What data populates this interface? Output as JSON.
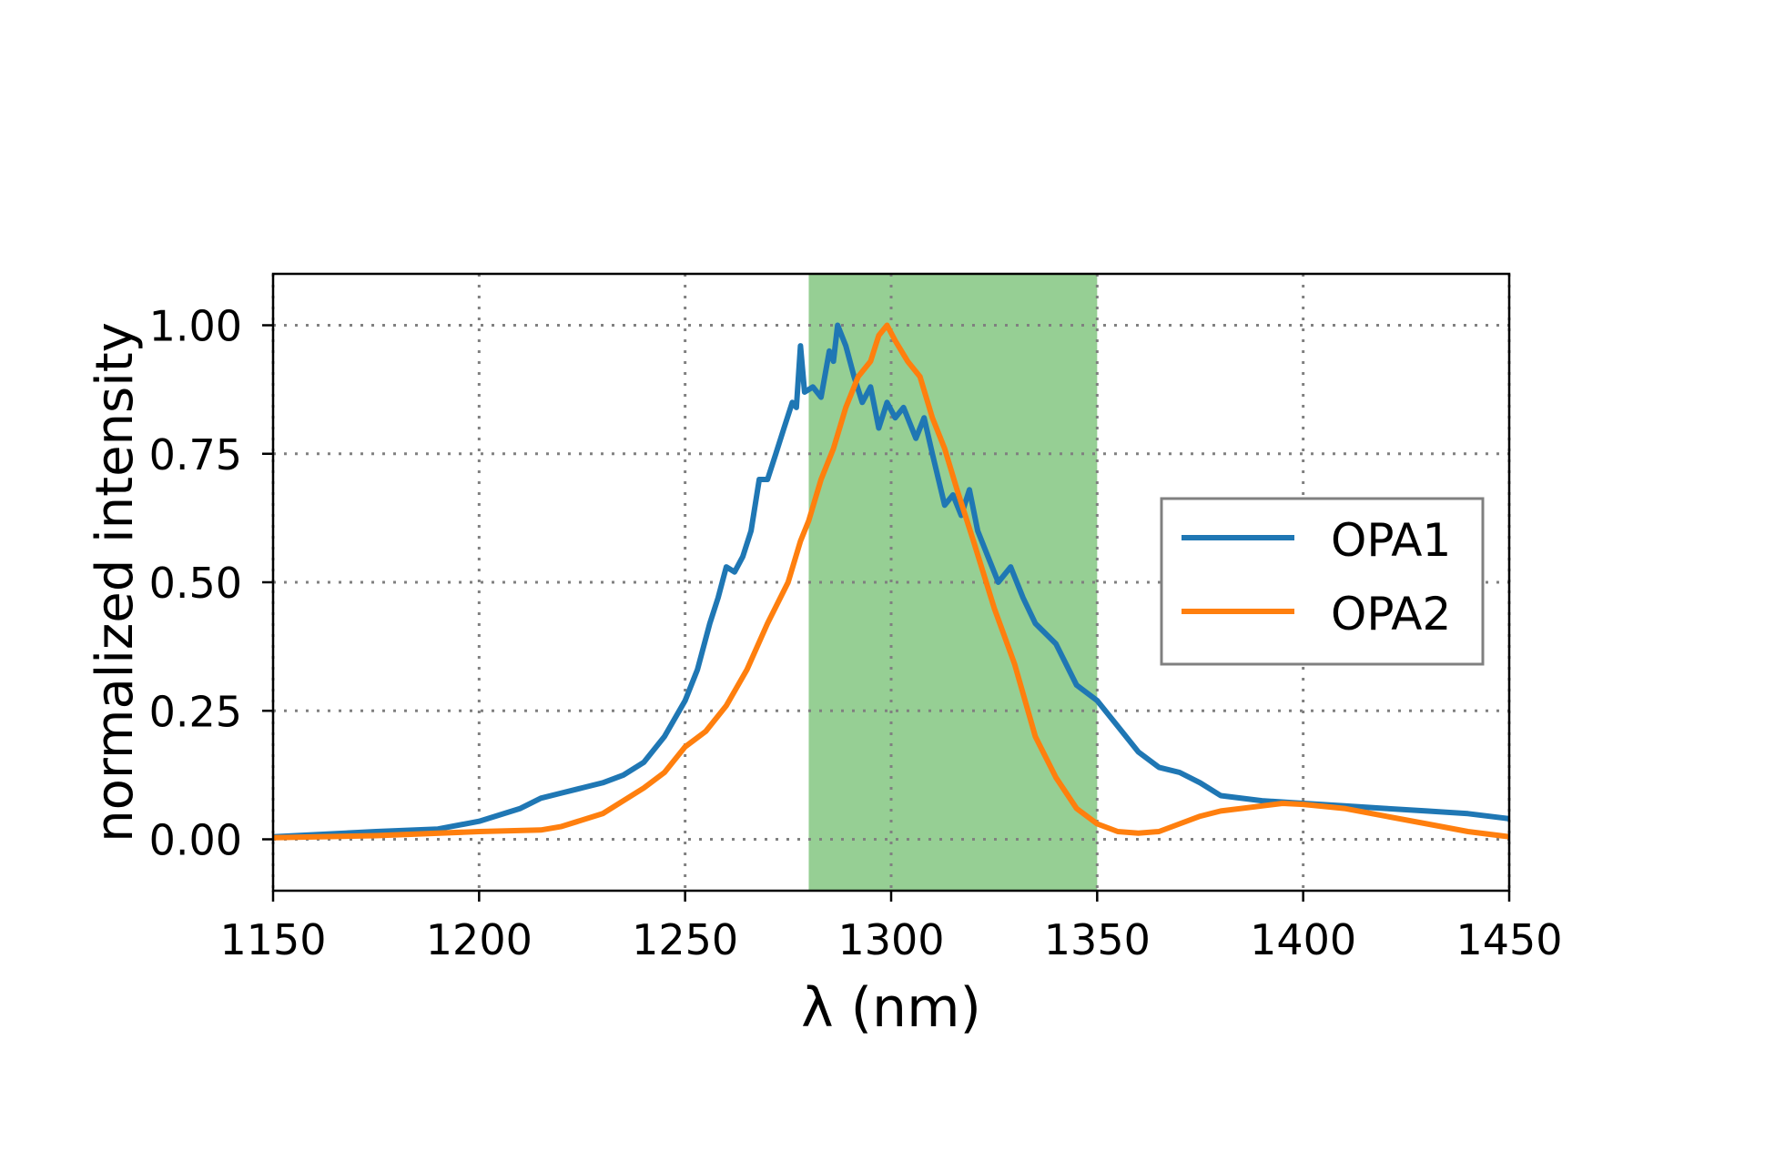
{
  "chart_data": {
    "type": "line",
    "title": "",
    "xlabel": "λ (nm)",
    "ylabel": "normalized intensity",
    "xlim": [
      1150,
      1450
    ],
    "ylim": [
      -0.1,
      1.1
    ],
    "xticks": [
      1150,
      1200,
      1250,
      1300,
      1350,
      1400,
      1450
    ],
    "xtick_labels": [
      "1150",
      "1200",
      "1250",
      "1300",
      "1350",
      "1400",
      "1450"
    ],
    "yticks": [
      0,
      0.25,
      0.5,
      0.75,
      1.0
    ],
    "ytick_labels": [
      "0.00",
      "0.25",
      "0.50",
      "0.75",
      "1.00"
    ],
    "grid": true,
    "grid_style": "dotted",
    "legend_position": "center-right",
    "highlight_band": {
      "x_start": 1280,
      "x_end": 1350,
      "color": "#96cf94"
    },
    "series": [
      {
        "name": "OPA1",
        "color": "#1f77b4",
        "x": [
          1150,
          1175,
          1190,
          1200,
          1210,
          1215,
          1220,
          1225,
          1230,
          1235,
          1240,
          1245,
          1250,
          1253,
          1256,
          1258,
          1260,
          1262,
          1264,
          1266,
          1268,
          1270,
          1272,
          1274,
          1276,
          1277,
          1278,
          1279,
          1281,
          1283,
          1285,
          1286,
          1287,
          1289,
          1291,
          1293,
          1295,
          1297,
          1299,
          1301,
          1303,
          1306,
          1308,
          1310,
          1313,
          1315,
          1317,
          1319,
          1321,
          1323,
          1326,
          1329,
          1332,
          1335,
          1340,
          1345,
          1350,
          1355,
          1360,
          1365,
          1370,
          1375,
          1380,
          1390,
          1400,
          1410,
          1420,
          1430,
          1440,
          1450
        ],
        "y": [
          0.005,
          0.015,
          0.02,
          0.035,
          0.06,
          0.08,
          0.09,
          0.1,
          0.11,
          0.125,
          0.15,
          0.2,
          0.27,
          0.33,
          0.42,
          0.47,
          0.53,
          0.52,
          0.55,
          0.6,
          0.7,
          0.7,
          0.75,
          0.8,
          0.85,
          0.84,
          0.96,
          0.87,
          0.88,
          0.86,
          0.95,
          0.93,
          1.0,
          0.96,
          0.9,
          0.85,
          0.88,
          0.8,
          0.85,
          0.82,
          0.84,
          0.78,
          0.82,
          0.75,
          0.65,
          0.67,
          0.63,
          0.68,
          0.6,
          0.56,
          0.5,
          0.53,
          0.47,
          0.42,
          0.38,
          0.3,
          0.27,
          0.22,
          0.17,
          0.14,
          0.13,
          0.11,
          0.085,
          0.075,
          0.07,
          0.065,
          0.06,
          0.055,
          0.05,
          0.04
        ]
      },
      {
        "name": "OPA2",
        "color": "#ff7f0e",
        "x": [
          1150,
          1175,
          1200,
          1215,
          1220,
          1230,
          1240,
          1245,
          1250,
          1255,
          1260,
          1265,
          1270,
          1275,
          1278,
          1280,
          1283,
          1286,
          1289,
          1292,
          1295,
          1297,
          1299,
          1301,
          1304,
          1307,
          1310,
          1313,
          1316,
          1320,
          1325,
          1330,
          1335,
          1340,
          1345,
          1350,
          1355,
          1360,
          1365,
          1370,
          1375,
          1380,
          1390,
          1395,
          1400,
          1410,
          1420,
          1430,
          1440,
          1450
        ],
        "y": [
          0.003,
          0.007,
          0.015,
          0.018,
          0.025,
          0.05,
          0.1,
          0.13,
          0.18,
          0.21,
          0.26,
          0.33,
          0.42,
          0.5,
          0.58,
          0.62,
          0.7,
          0.76,
          0.84,
          0.9,
          0.93,
          0.98,
          1.0,
          0.97,
          0.93,
          0.9,
          0.82,
          0.76,
          0.68,
          0.58,
          0.45,
          0.34,
          0.2,
          0.12,
          0.06,
          0.03,
          0.015,
          0.012,
          0.015,
          0.03,
          0.045,
          0.055,
          0.065,
          0.07,
          0.068,
          0.06,
          0.045,
          0.03,
          0.015,
          0.005
        ]
      }
    ]
  }
}
